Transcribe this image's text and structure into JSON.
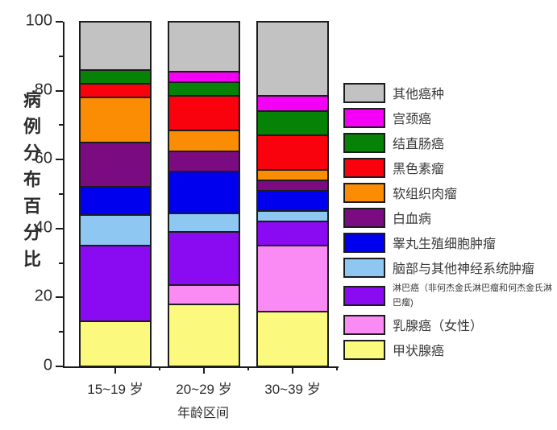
{
  "chart_data": {
    "type": "bar",
    "stacked": true,
    "orientation": "vertical",
    "xlabel": "年龄区间",
    "ylabel": "病例分布百分比",
    "ylim": [
      0,
      100
    ],
    "yticks_major": [
      0,
      20,
      40,
      60,
      80,
      100
    ],
    "yticks_minor": [
      10,
      30,
      50,
      70,
      90
    ],
    "grid": false,
    "legend_position": "right",
    "legend_note": "legend lists series top-to-bottom in reverse stacking order",
    "categories": [
      "15~19 岁",
      "20~29 岁",
      "30~39 岁"
    ],
    "series": [
      {
        "name": "甲状腺癌",
        "color": "#FBF97E",
        "values": [
          13,
          18,
          16
        ]
      },
      {
        "name": "乳腺癌（女性）",
        "color": "#FB8BF4",
        "values": [
          0,
          5.5,
          19
        ]
      },
      {
        "name": "淋巴癌（非何杰金氏淋巴瘤和何杰金氏淋巴瘤)",
        "color": "#8A0AF2",
        "values": [
          22,
          15.5,
          7
        ]
      },
      {
        "name": "脑部与其他神经系统肿瘤",
        "color": "#8EC8F2",
        "values": [
          9,
          5.5,
          3
        ]
      },
      {
        "name": "睾丸生殖细胞肿瘤",
        "color": "#0000EF",
        "values": [
          8,
          12,
          6
        ]
      },
      {
        "name": "白血病",
        "color": "#7B0B80",
        "values": [
          13,
          6,
          3
        ]
      },
      {
        "name": "软组织肉瘤",
        "color": "#FA8D03",
        "values": [
          13,
          6,
          3
        ]
      },
      {
        "name": "黑色素瘤",
        "color": "#F9010D",
        "values": [
          4,
          10,
          10
        ]
      },
      {
        "name": "结直肠癌",
        "color": "#068206",
        "values": [
          4,
          4,
          7
        ]
      },
      {
        "name": "宫颈癌",
        "color": "#F400F6",
        "values": [
          0,
          3,
          4.5
        ]
      },
      {
        "name": "其他癌种",
        "color": "#C2C2C2",
        "values": [
          14,
          14.5,
          21.5
        ]
      }
    ]
  },
  "axis_colors": {
    "line": "#1c1c1c",
    "text": "#2d2d2d"
  }
}
